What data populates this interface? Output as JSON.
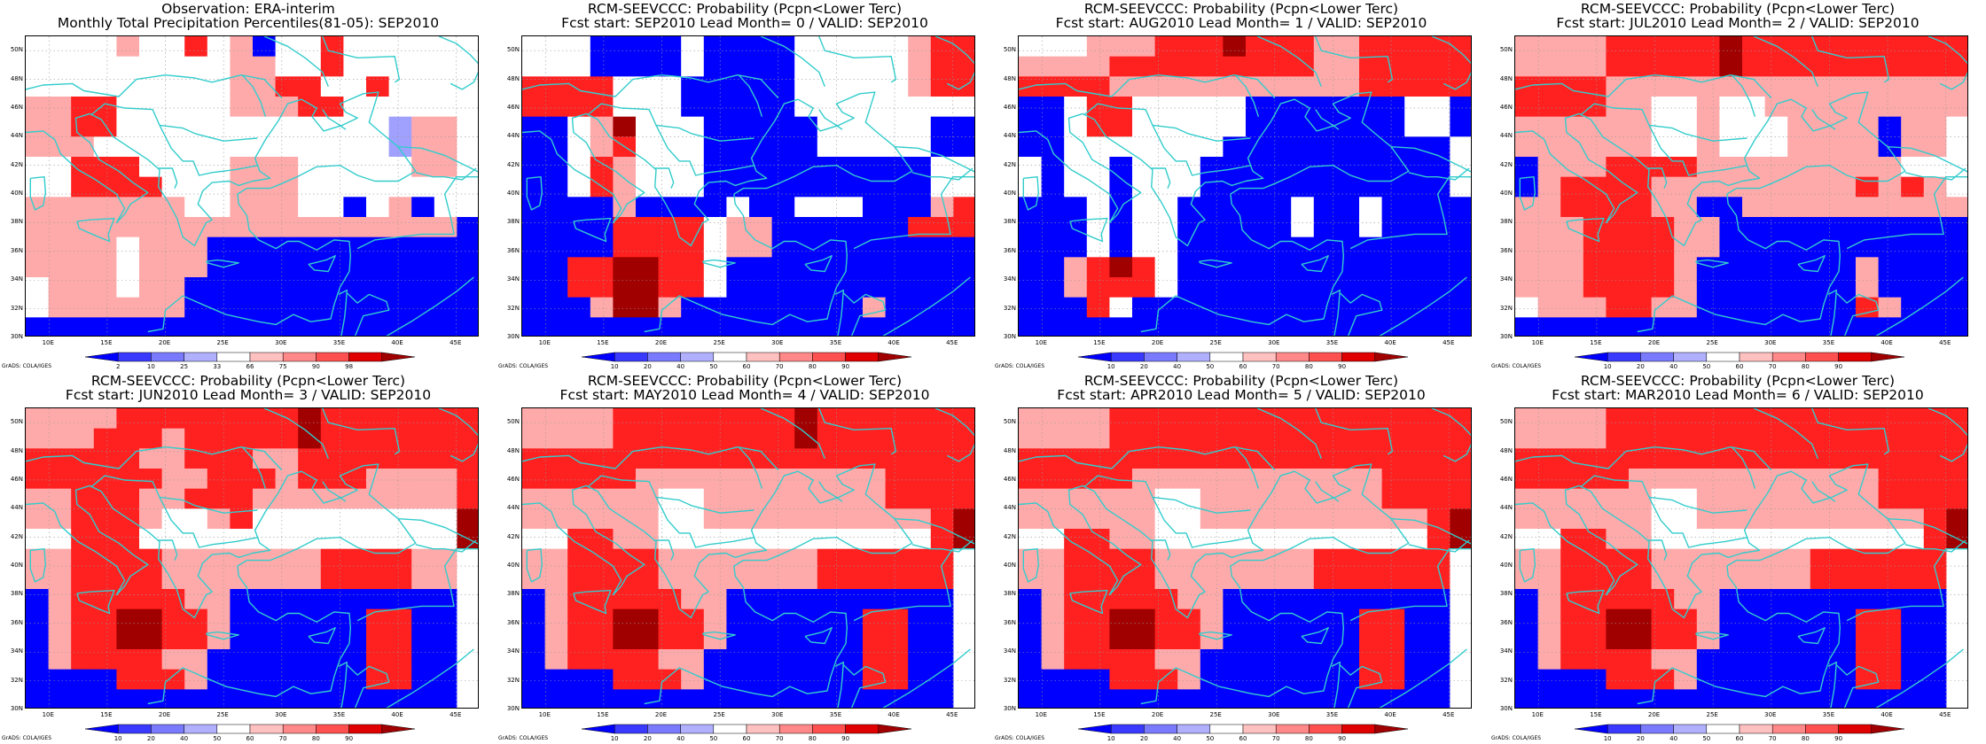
{
  "colors": {
    "blue": "#0000ff",
    "lightblue": "#a0a0ff",
    "white": "#ffffff",
    "pink": "#ffaaaa",
    "lightred": "#ff7070",
    "red": "#ff2020",
    "darkred": "#a00000",
    "coast": "#33cccc"
  },
  "map_extent": {
    "lon": [
      8,
      47
    ],
    "lat": [
      30,
      51
    ]
  },
  "lat_labels": [
    "50N",
    "48N",
    "46N",
    "44N",
    "42N",
    "40N",
    "38N",
    "36N",
    "34N",
    "32N",
    "30N"
  ],
  "lon_labels": [
    "10E",
    "15E",
    "20E",
    "25E",
    "30E",
    "35E",
    "40E",
    "45E"
  ],
  "credit": "GrADS: COLA/IGES",
  "panels": [
    {
      "title1": "Observation: ERA-interim",
      "title2": "Monthly Total Precipitation Percentiles(81-05): SEP2010",
      "legend": [
        "2",
        "10",
        "25",
        "33",
        "66",
        "75",
        "90",
        "98"
      ],
      "grid": [
        "WWWWPWWRWPBWWRWWWWWW",
        "WWWWWWWWWPPWWRWWWWWW",
        "WWWWWWWWWPPRRWWRWWWW",
        "PPRRWWWWWPPPRRWWWWWW",
        "PPRRWWWWWWWWWWWWLPPW",
        "PPPWWWWWWWWWWWWWLPPW",
        "WWRRRWWWWPPPWWWWWPPW",
        "WWRRRRWWWPPPWWWWWWWW",
        "PPPPPPPWWPPPWWBWPBWW",
        "PPPPPPPPPPPPPPPPPPPB",
        "PPPPWPPPBBBBBBBBBBBB",
        "PPPPWPPPBBBBBBBBBBBB",
        "WPPPWPPBBBBBBBBBBBBB",
        "WPPPPPPBBBBBBBBBBBBB",
        "BBBBBBBBBBBBBBBBBBBB"
      ]
    },
    {
      "title1": "RCM-SEEVCCC: Probability (Pcpn<Lower Terc)",
      "title2": "Fcst start: SEP2010  Lead Month= 0 / VALID: SEP2010",
      "legend": [
        "10",
        "20",
        "40",
        "50",
        "60",
        "70",
        "80",
        "90"
      ],
      "grid": [
        "WWWBBBBWBBBBWWWWWPRR",
        "WWWBBBBWBBBBWWWWWPRR",
        "RRRRWWWBBBBBWWWWWPRR",
        "RRRRWWWBBBBBWWWWWWWW",
        "BBWPDWWWBBBBBWWWWWBB",
        "BBWPRWWWBBBBBWWWWWBB",
        "BBWRPWWWBBBBBBBBBBWW",
        "BBWRPWWWBBBBBBBBBBWW",
        "BBBBPBBBBWBBWWWBBBPR",
        "BBBBRRRRWPPBBBBBBRRR",
        "BBBBRRRRWPPBBBBBBBBB",
        "BBRRDDRRWBBBBBBBBBBB",
        "BBRRDDRRWBBBBBBBBBBB",
        "BBBPDDPBBBBBBBBPBBBB",
        "BBBBBBBBBBBBBBBBBBBB"
      ]
    },
    {
      "title1": "RCM-SEEVCCC: Probability (Pcpn<Lower Terc)",
      "title2": "Fcst start: AUG2010  Lead Month= 1 / VALID: SEP2010",
      "legend": [
        "10",
        "20",
        "40",
        "50",
        "60",
        "70",
        "80",
        "90"
      ],
      "grid": [
        "WWWPPPRRRDRRRPPRRRRR",
        "PPPPRRRRRRRRRPPRRRRR",
        "RRRRPPPPPPPPPPPRRRRR",
        "BBWRRWWWWWBBBBBBBWWB",
        "BBWRRWWWWWBBBBBBBWWB",
        "BBWWWWWWWBBBBBBBBBBW",
        "WBWWBWWWBBBBBBBBBBBW",
        "WBWWBWWWBBBBBBBBBBBW",
        "BBBWBWWBBBBBWBBWBBBB",
        "BBBWBWWBBBBBWBBWBBBB",
        "BBBWBWWBBBBBBBBBBBBB",
        "BBPRDRWBBBBBBBBBBBBB",
        "BBPRRRWBBBBBBBBBBBBB",
        "BBBRWBBBBBBBBBBBBBBB",
        "BBBBBBBBBBBBBBBBBBBB"
      ]
    },
    {
      "title1": "RCM-SEEVCCC: Probability (Pcpn<Lower Terc)",
      "title2": "Fcst start: JUL2010  Lead Month= 2 / VALID: SEP2010",
      "legend": [
        "10",
        "20",
        "40",
        "50",
        "60",
        "70",
        "80",
        "90"
      ],
      "grid": [
        "PPPPRRRRRDRRRRRRRRRR",
        "PPPPRRRRRDRRRRRRRRRR",
        "RRRRPPPPPPPPPPPPPPPP",
        "RRRRPPWWPWWPPPPPPPPP",
        "PPPPPPWWPWWWPPPPBPPW",
        "PPPPPPWWPWWWPPPPBPPW",
        "BPPPRRRRPPPPPPPPPWWW",
        "BPRRRRPPPPPPPPPRPRPW",
        "PPRRRRPPBBPPPPPPPPPP",
        "PPPRRRRPPBBBBBBBBBBB",
        "PPPRRRRPPBBBBBBBBBBB",
        "PPPRRRRPBBBBBBBPBBBB",
        "PPPRRRRPBBBBBBBPBBBB",
        "WPPPRRPPBBBBBBBRPBBB",
        "BBBBBBBBBBBBBBBBBBBB"
      ]
    },
    {
      "title1": "RCM-SEEVCCC: Probability (Pcpn<Lower Terc)",
      "title2": "Fcst start: JUN2010  Lead Month= 3 / VALID: SEP2010",
      "legend": [
        "10",
        "20",
        "40",
        "50",
        "60",
        "70",
        "80",
        "90"
      ],
      "grid": [
        "PPPPRRRRRRRRDRRRRRRR",
        "PPPRRRPRRRRRDRRRRRRR",
        "RRRRRPPRRRPPRRRRRRRR",
        "RRRRRRPPRRRPRRRPPPPR",
        "PPRRRPPRRRPPPPPPPPPR",
        "PPRRRPWWPRWWWWWWWWWD",
        "WWRRRWWWWWWWWWWWWWWD",
        "PPRRRRPPPPPPPRRRRPPW",
        "PPRRRRPPPPPPPRRRRPPW",
        "BPRRRRRPPBBBBBBBBBBW",
        "BPRRDDRRPBBBBBBRRBBW",
        "BPRRDDRRPBBBBBBRRBBW",
        "BPRRRRPPBBBBBBBRRBBW",
        "BBBBRRRPBBBBBBBRRBBW",
        "BBBBBBBBBBBBBBBBBBBW"
      ]
    },
    {
      "title1": "RCM-SEEVCCC: Probability (Pcpn<Lower Terc)",
      "title2": "Fcst start: MAY2010  Lead Month= 4 / VALID: SEP2010",
      "legend": [
        "10",
        "20",
        "40",
        "50",
        "60",
        "70",
        "80",
        "90"
      ],
      "grid": [
        "PPPPRRRRRRRRDRRRRRRR",
        "PPPPRRRRRRRRDRRRRRRR",
        "RRRRRRRRRRRRRRRRRRRR",
        "RRRRRPPPPPPPPPPPRRRR",
        "PPPPPPWWPPPPPPPPRRRR",
        "PPPPPPWWPPPPPPPPPPRD",
        "WWRRPPWWWWWWWWWWWWRD",
        "PPRRRRPPPPPPPRRRRRRW",
        "PPRRRRPPPPPPPRRRRRRW",
        "BPRRRRRPPBBBBBBBBBBW",
        "BPRRDDRRPBBBBBBRRBBW",
        "BPRRDDRRPBBBBBBRRBBW",
        "BPRRRRPPBBBBBBBRRBBW",
        "BBBBRRRPBBBBBBBRRBBW",
        "BBBBBBBBBBBBBBBBBBBW"
      ]
    },
    {
      "title1": "RCM-SEEVCCC: Probability (Pcpn<Lower Terc)",
      "title2": "Fcst start: APR2010  Lead Month= 5 / VALID: SEP2010",
      "legend": [
        "10",
        "20",
        "40",
        "50",
        "60",
        "70",
        "80",
        "90"
      ],
      "grid": [
        "PPPPRRRRRRRRRRRRRRRR",
        "PPPPRRRRRRRRRRRRRRRR",
        "RRRRRRRRRRRRRRRRRRRR",
        "RRRRRPPPPPPPPPPPRRRR",
        "PPPPPPWWPPPPPPPPRRRR",
        "PPPPPPWWPPPPPPPPPPRD",
        "WWRRPPWWWWWWWWWWWWRD",
        "PPRRRRPPPPPPPRRRRRRW",
        "PPRRRRPPPPPPPRRRRRRW",
        "BPRRRRRPPBBBBBBBBBBW",
        "BPRRDDRRPBBBBBBRRBBW",
        "BPRRDDRRPBBBBBBRRBBW",
        "BPRRRRPPBBBBBBBRRBBW",
        "BBBBRRRPBBBBBBBRRBBW",
        "BBBBBBBBBBBBBBBBBBBW"
      ]
    },
    {
      "title1": "RCM-SEEVCCC: Probability (Pcpn<Lower Terc)",
      "title2": "Fcst start: MAR2010  Lead Month= 6 / VALID: SEP2010",
      "legend": [
        "10",
        "20",
        "40",
        "50",
        "60",
        "70",
        "80",
        "90"
      ],
      "grid": [
        "PPPPRRRRRRRRRRRRRRRR",
        "PPPPRRRRRRRRRRRRRRRR",
        "RRRRRRRRRRRRRRRRRRRR",
        "RRRRRPPPPPPPPPPPRRRR",
        "PPPPPPWWPPPPPPPPRRRR",
        "PPPPPPWWPPPPPPPPPPRD",
        "WWRRPPWWWWWWWWWWWWRD",
        "PPRRRRPPPPPPPRRRRRRW",
        "PPRRRRPPPPPPPRRRRRRW",
        "BPRRRRRPPBBBBBBBBBBW",
        "BPRRDDRRPBBBBBBRRBBW",
        "BPRRDDRRPBBBBBBRRBBW",
        "BPRRRRPPBBBBBBBRRBBW",
        "BBBBRRRPBBBBBBBRRBBW",
        "BBBBBBBBBBBBBBBBBBBW"
      ]
    }
  ]
}
